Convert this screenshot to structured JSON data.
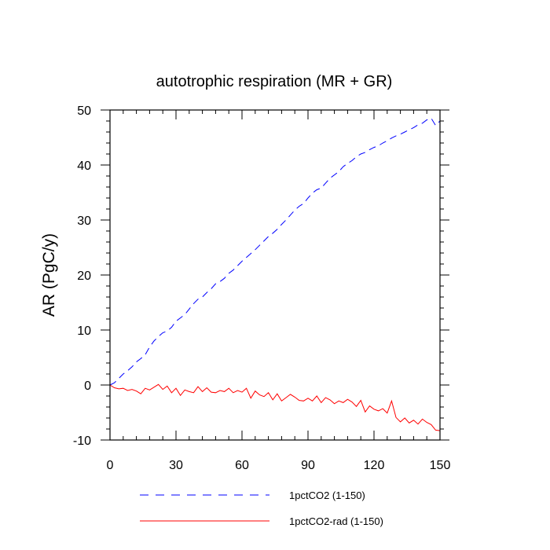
{
  "chart_data": {
    "type": "line",
    "title": "autotrophic respiration (MR + GR)",
    "xlabel": "",
    "ylabel": "AR  (PgC/y)",
    "xlim": [
      0,
      150
    ],
    "ylim": [
      -10,
      50
    ],
    "xticks": [
      0,
      30,
      60,
      90,
      120,
      150
    ],
    "yticks": [
      -10,
      0,
      10,
      20,
      30,
      40,
      50
    ],
    "grid": false,
    "legend_position": "bottom",
    "series": [
      {
        "name": "1pctCO2 (1-150)",
        "color": "#0000ff",
        "style": "dashed",
        "x": [
          0,
          2,
          4,
          6,
          8,
          10,
          12,
          14,
          16,
          18,
          20,
          22,
          24,
          26,
          28,
          30,
          32,
          34,
          36,
          38,
          40,
          42,
          44,
          46,
          48,
          50,
          52,
          54,
          56,
          58,
          60,
          62,
          64,
          66,
          68,
          70,
          72,
          74,
          76,
          78,
          80,
          82,
          84,
          86,
          88,
          90,
          92,
          94,
          96,
          98,
          100,
          102,
          104,
          106,
          108,
          110,
          112,
          114,
          116,
          118,
          120,
          122,
          124,
          126,
          128,
          130,
          132,
          134,
          136,
          138,
          140,
          142,
          144,
          146,
          148,
          150
        ],
        "y": [
          0.0,
          0.4,
          1.2,
          2.0,
          2.6,
          3.3,
          4.2,
          4.8,
          5.5,
          6.9,
          8.0,
          8.8,
          9.5,
          9.8,
          10.5,
          11.6,
          12.2,
          12.8,
          13.8,
          14.8,
          15.6,
          16.0,
          16.8,
          17.5,
          18.4,
          18.8,
          19.4,
          20.3,
          20.9,
          21.7,
          22.5,
          23.2,
          23.9,
          24.6,
          25.4,
          26.2,
          27.0,
          27.6,
          28.3,
          29.2,
          30.0,
          30.9,
          31.8,
          32.5,
          33.0,
          34.0,
          34.9,
          35.5,
          35.8,
          36.7,
          37.6,
          38.2,
          38.8,
          39.7,
          40.3,
          40.8,
          41.5,
          42.0,
          42.3,
          42.8,
          43.2,
          43.5,
          44.0,
          44.4,
          44.9,
          45.3,
          45.6,
          46.0,
          46.4,
          46.8,
          47.3,
          47.6,
          48.2,
          48.5,
          47.2,
          48.0
        ]
      },
      {
        "name": "1pctCO2-rad (1-150)",
        "color": "#ff0000",
        "style": "solid",
        "x": [
          0,
          2,
          4,
          6,
          8,
          10,
          12,
          14,
          16,
          18,
          20,
          22,
          24,
          26,
          28,
          30,
          32,
          34,
          36,
          38,
          40,
          42,
          44,
          46,
          48,
          50,
          52,
          54,
          56,
          58,
          60,
          62,
          64,
          66,
          68,
          70,
          72,
          74,
          76,
          78,
          80,
          82,
          84,
          86,
          88,
          90,
          92,
          94,
          96,
          98,
          100,
          102,
          104,
          106,
          108,
          110,
          112,
          114,
          116,
          118,
          120,
          122,
          124,
          126,
          128,
          130,
          132,
          134,
          136,
          138,
          140,
          142,
          144,
          146,
          148,
          150
        ],
        "y": [
          0.0,
          -0.5,
          -0.7,
          -0.6,
          -1.0,
          -0.8,
          -1.1,
          -1.6,
          -0.6,
          -0.9,
          -0.4,
          0.1,
          -0.8,
          -0.2,
          -1.4,
          -0.6,
          -1.9,
          -0.9,
          -1.2,
          -1.4,
          -0.3,
          -1.2,
          -0.5,
          -1.3,
          -1.4,
          -1.0,
          -1.2,
          -0.6,
          -1.4,
          -1.0,
          -1.3,
          -0.6,
          -2.4,
          -1.1,
          -1.8,
          -2.1,
          -1.4,
          -2.7,
          -1.6,
          -2.9,
          -2.3,
          -1.7,
          -2.2,
          -2.8,
          -2.9,
          -2.4,
          -2.9,
          -2.0,
          -3.2,
          -2.3,
          -2.7,
          -3.4,
          -2.9,
          -3.2,
          -2.6,
          -3.1,
          -3.9,
          -2.8,
          -4.9,
          -3.8,
          -4.4,
          -4.7,
          -4.3,
          -5.1,
          -2.9,
          -5.9,
          -6.7,
          -6.0,
          -6.9,
          -6.4,
          -7.1,
          -6.2,
          -6.8,
          -7.2,
          -8.2,
          -8.3
        ]
      }
    ]
  }
}
